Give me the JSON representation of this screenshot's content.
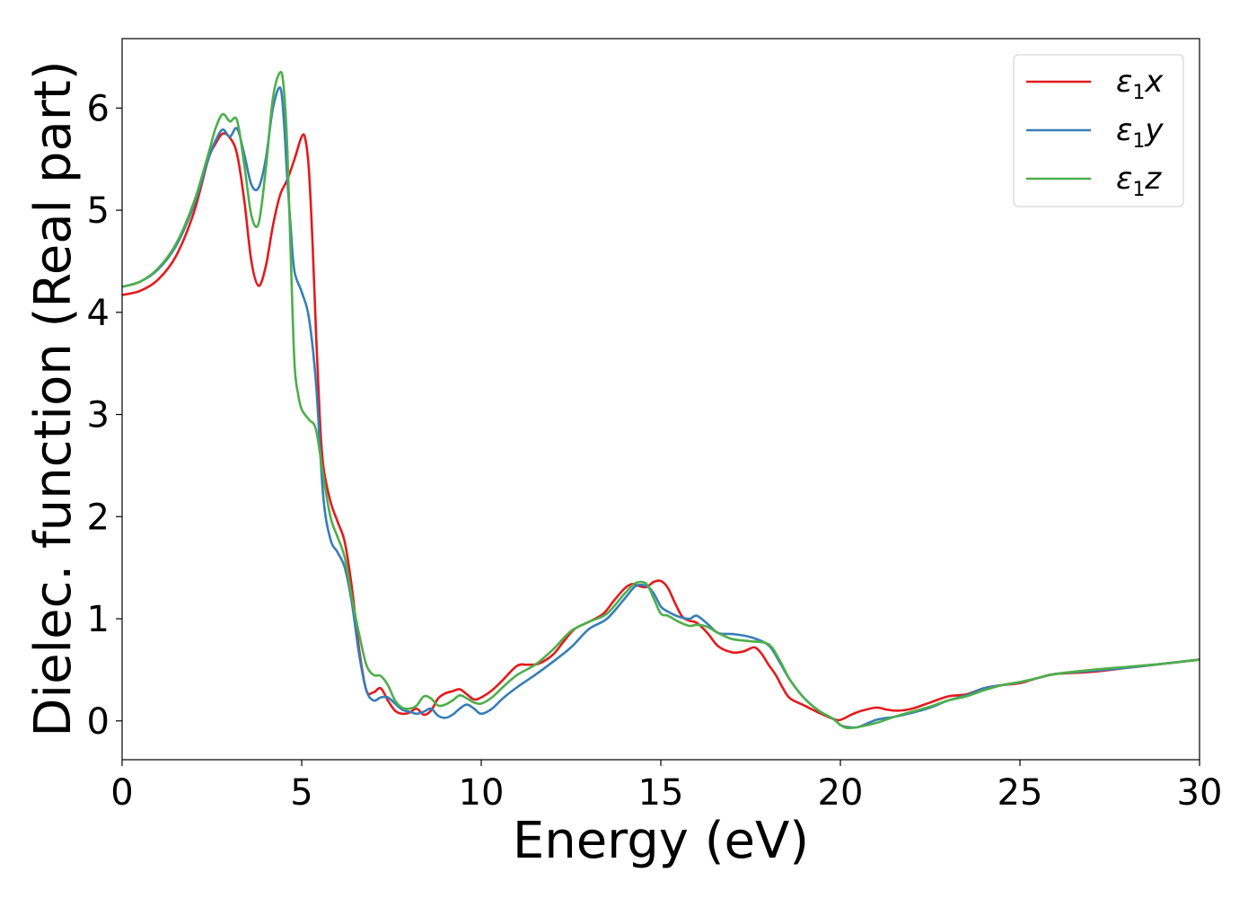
{
  "chart_data": {
    "type": "line",
    "xlabel": "Energy (eV)",
    "ylabel": "Dielec. function (Real part)",
    "xlim": [
      0,
      30
    ],
    "ylim": [
      -0.38,
      6.68
    ],
    "xticks": [
      0,
      5,
      10,
      15,
      20,
      25,
      30
    ],
    "xtick_labels": [
      "0",
      "5",
      "10",
      "15",
      "20",
      "25",
      "30"
    ],
    "yticks": [
      0,
      1,
      2,
      3,
      4,
      5,
      6
    ],
    "ytick_labels": [
      "0",
      "1",
      "2",
      "3",
      "4",
      "5",
      "6"
    ],
    "grid": false,
    "legend_position": "top-right",
    "series": [
      {
        "name": "ε1x",
        "legend_symbol": "ε",
        "legend_sub": "1",
        "legend_var": "x",
        "color": "#e41a1c",
        "x": [
          0,
          0.5,
          1.0,
          1.5,
          2.0,
          2.4,
          2.6,
          2.8,
          3.0,
          3.2,
          3.4,
          3.6,
          3.8,
          4.0,
          4.2,
          4.4,
          4.6,
          4.8,
          5.0,
          5.1,
          5.2,
          5.3,
          5.4,
          5.5,
          5.6,
          5.8,
          6.0,
          6.2,
          6.4,
          6.6,
          6.8,
          7.0,
          7.2,
          7.4,
          7.6,
          7.8,
          8.0,
          8.2,
          8.4,
          8.6,
          8.8,
          9.0,
          9.2,
          9.4,
          9.6,
          9.8,
          10.0,
          10.3,
          10.6,
          11.0,
          11.3,
          11.6,
          12.0,
          12.3,
          12.6,
          13.0,
          13.4,
          13.7,
          14.0,
          14.2,
          14.4,
          14.6,
          14.8,
          15.0,
          15.2,
          15.4,
          15.6,
          15.8,
          16.0,
          16.3,
          16.6,
          17.0,
          17.3,
          17.6,
          17.8,
          18.0,
          18.2,
          18.4,
          18.6,
          19.0,
          19.4,
          19.8,
          20.0,
          20.3,
          20.6,
          21.0,
          21.3,
          21.6,
          22.0,
          22.5,
          23.0,
          23.5,
          24.0,
          24.5,
          25.0,
          25.5,
          26.0,
          27.0,
          28.0,
          29.0,
          30.0
        ],
        "y": [
          4.17,
          4.21,
          4.32,
          4.55,
          4.98,
          5.5,
          5.65,
          5.75,
          5.71,
          5.55,
          5.1,
          4.5,
          4.26,
          4.45,
          4.85,
          5.15,
          5.3,
          5.5,
          5.72,
          5.7,
          5.4,
          4.7,
          3.8,
          3.0,
          2.5,
          2.15,
          1.95,
          1.75,
          1.3,
          0.7,
          0.3,
          0.28,
          0.32,
          0.2,
          0.1,
          0.07,
          0.08,
          0.12,
          0.06,
          0.1,
          0.22,
          0.27,
          0.29,
          0.31,
          0.26,
          0.21,
          0.23,
          0.3,
          0.4,
          0.54,
          0.55,
          0.56,
          0.65,
          0.78,
          0.9,
          0.97,
          1.05,
          1.18,
          1.3,
          1.34,
          1.32,
          1.31,
          1.36,
          1.37,
          1.3,
          1.15,
          1.02,
          0.98,
          0.96,
          0.86,
          0.73,
          0.67,
          0.68,
          0.72,
          0.66,
          0.55,
          0.45,
          0.32,
          0.22,
          0.15,
          0.08,
          0.02,
          0.01,
          0.06,
          0.1,
          0.13,
          0.11,
          0.1,
          0.12,
          0.18,
          0.24,
          0.26,
          0.32,
          0.35,
          0.37,
          0.42,
          0.46,
          0.48,
          0.52,
          0.56,
          0.6
        ]
      },
      {
        "name": "ε1y",
        "legend_symbol": "ε",
        "legend_sub": "1",
        "legend_var": "y",
        "color": "#377eb8",
        "x": [
          0,
          0.5,
          1.0,
          1.5,
          2.0,
          2.4,
          2.6,
          2.8,
          3.0,
          3.2,
          3.4,
          3.6,
          3.8,
          4.0,
          4.2,
          4.4,
          4.5,
          4.6,
          4.7,
          4.8,
          5.0,
          5.2,
          5.4,
          5.6,
          5.8,
          6.0,
          6.2,
          6.4,
          6.6,
          6.8,
          7.0,
          7.2,
          7.4,
          7.6,
          7.8,
          8.0,
          8.2,
          8.4,
          8.6,
          8.8,
          9.0,
          9.2,
          9.4,
          9.6,
          9.8,
          10.0,
          10.3,
          10.6,
          11.0,
          11.5,
          12.0,
          12.5,
          13.0,
          13.5,
          14.0,
          14.3,
          14.6,
          14.8,
          15.0,
          15.2,
          15.5,
          15.8,
          16.0,
          16.3,
          16.6,
          17.0,
          17.5,
          18.0,
          18.3,
          18.6,
          19.0,
          19.4,
          19.8,
          20.0,
          20.2,
          20.5,
          21.0,
          21.5,
          22.0,
          22.5,
          23.0,
          23.5,
          24.0,
          24.5,
          25.0,
          25.5,
          26.0,
          27.0,
          28.0,
          29.0,
          30.0
        ],
        "y": [
          4.25,
          4.3,
          4.42,
          4.65,
          5.05,
          5.5,
          5.68,
          5.79,
          5.72,
          5.8,
          5.55,
          5.25,
          5.22,
          5.5,
          6.0,
          6.2,
          5.9,
          5.3,
          4.8,
          4.4,
          4.2,
          3.95,
          3.3,
          2.2,
          1.78,
          1.65,
          1.5,
          1.15,
          0.65,
          0.3,
          0.2,
          0.23,
          0.23,
          0.17,
          0.11,
          0.09,
          0.07,
          0.09,
          0.12,
          0.05,
          0.03,
          0.06,
          0.12,
          0.16,
          0.12,
          0.07,
          0.12,
          0.22,
          0.33,
          0.45,
          0.58,
          0.72,
          0.9,
          1.0,
          1.2,
          1.32,
          1.32,
          1.25,
          1.12,
          1.07,
          1.02,
          1.0,
          1.03,
          0.95,
          0.86,
          0.85,
          0.82,
          0.74,
          0.58,
          0.4,
          0.22,
          0.1,
          0.02,
          -0.04,
          -0.06,
          -0.06,
          0.01,
          0.04,
          0.08,
          0.13,
          0.2,
          0.25,
          0.32,
          0.35,
          0.38,
          0.42,
          0.46,
          0.49,
          0.52,
          0.56,
          0.6
        ]
      },
      {
        "name": "ε1z",
        "legend_symbol": "ε",
        "legend_sub": "1",
        "legend_var": "z",
        "color": "#4daf4a",
        "x": [
          0,
          0.5,
          1.0,
          1.5,
          2.0,
          2.4,
          2.6,
          2.8,
          3.0,
          3.2,
          3.4,
          3.6,
          3.8,
          4.0,
          4.2,
          4.4,
          4.5,
          4.6,
          4.7,
          4.8,
          4.9,
          5.0,
          5.2,
          5.4,
          5.6,
          5.8,
          6.0,
          6.2,
          6.4,
          6.6,
          6.8,
          7.0,
          7.2,
          7.4,
          7.6,
          7.8,
          8.0,
          8.2,
          8.4,
          8.6,
          8.8,
          9.0,
          9.2,
          9.4,
          9.6,
          9.8,
          10.0,
          10.3,
          10.6,
          11.0,
          11.5,
          12.0,
          12.5,
          13.0,
          13.5,
          14.0,
          14.3,
          14.6,
          14.8,
          15.0,
          15.2,
          15.5,
          15.8,
          16.0,
          16.3,
          16.6,
          17.0,
          17.5,
          18.0,
          18.3,
          18.6,
          19.0,
          19.4,
          19.8,
          20.0,
          20.2,
          20.5,
          21.0,
          21.5,
          22.0,
          22.5,
          23.0,
          23.5,
          24.0,
          24.5,
          25.0,
          25.5,
          26.0,
          27.0,
          28.0,
          29.0,
          30.0
        ],
        "y": [
          4.25,
          4.3,
          4.43,
          4.67,
          5.08,
          5.55,
          5.8,
          5.94,
          5.87,
          5.88,
          5.45,
          4.95,
          4.87,
          5.4,
          6.1,
          6.35,
          6.2,
          5.6,
          4.5,
          3.5,
          3.2,
          3.05,
          2.95,
          2.85,
          2.4,
          2.0,
          1.8,
          1.6,
          1.2,
          0.85,
          0.55,
          0.45,
          0.44,
          0.35,
          0.2,
          0.13,
          0.12,
          0.15,
          0.24,
          0.22,
          0.15,
          0.16,
          0.2,
          0.25,
          0.22,
          0.18,
          0.17,
          0.23,
          0.33,
          0.45,
          0.55,
          0.7,
          0.88,
          0.97,
          1.05,
          1.25,
          1.35,
          1.34,
          1.2,
          1.05,
          1.03,
          0.97,
          0.93,
          0.94,
          0.92,
          0.86,
          0.8,
          0.78,
          0.75,
          0.6,
          0.4,
          0.22,
          0.1,
          0.02,
          -0.04,
          -0.07,
          -0.06,
          -0.02,
          0.04,
          0.09,
          0.14,
          0.2,
          0.24,
          0.3,
          0.35,
          0.38,
          0.42,
          0.46,
          0.5,
          0.53,
          0.56,
          0.6
        ]
      }
    ]
  }
}
